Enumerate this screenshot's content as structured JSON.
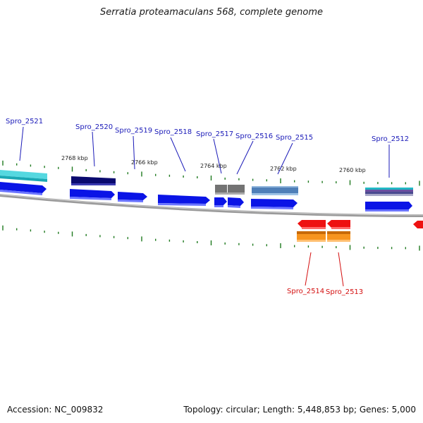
{
  "title": "Serratia proteamaculans 568, complete genome",
  "footer": {
    "accession": "Accession: NC_009832",
    "summary": "Topology: circular; Length: 5,448,853 bp; Genes: 5,000"
  },
  "colors": {
    "cds_forward": "#0a14e6",
    "cds_reverse_red": "#ee1111",
    "cds_reverse_orange": "#f28a0a",
    "label_blue": "#1a1ab8",
    "label_red": "#d40f0f",
    "tick_green": "#1f7a1f",
    "backbone": "#8a8a8a",
    "teal": "#22b8c4",
    "navy": "#0a0a6e",
    "grey": "#707070",
    "steel": "#4f7fb8",
    "purple_stripe": "#6a4fa0"
  },
  "scale_labels": [
    "2768 kbp",
    "2766 kbp",
    "2764 kbp",
    "2762 kbp",
    "2760 kbp"
  ],
  "gene_labels_top": [
    "Spro_2521",
    "Spro_2520",
    "Spro_2519",
    "Spro_2518",
    "Spro_2517",
    "Spro_2516",
    "Spro_2515",
    "Spro_2512"
  ],
  "gene_labels_bottom": [
    "Spro_2514",
    "Spro_2513"
  ]
}
